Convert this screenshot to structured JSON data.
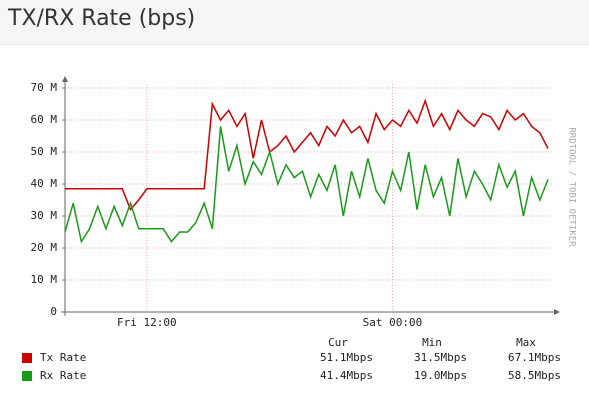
{
  "header": {
    "title": "TX/RX Rate (bps)"
  },
  "chart_data": {
    "type": "line",
    "watermark": "RRDTOOL / TOBI OETIKER",
    "categories": [
      null,
      null,
      null,
      null,
      null,
      null,
      null,
      null,
      null,
      null,
      "Fri 12:00",
      null,
      null,
      null,
      null,
      null,
      null,
      null,
      null,
      null,
      null,
      null,
      null,
      null,
      null,
      null,
      null,
      null,
      null,
      null,
      null,
      null,
      null,
      null,
      null,
      null,
      null,
      null,
      null,
      null,
      "Sat 00:00",
      null,
      null,
      null,
      null,
      null,
      null,
      null,
      null,
      null,
      null,
      null,
      null,
      null,
      null,
      null,
      null,
      null,
      null,
      null
    ],
    "series": [
      {
        "name": "Tx Rate",
        "color": "#cc0000",
        "values": [
          38500000,
          38500000,
          38500000,
          38500000,
          38500000,
          38500000,
          38500000,
          38500000,
          32000000,
          35000000,
          38500000,
          38500000,
          38500000,
          38500000,
          38500000,
          38500000,
          38500000,
          38500000,
          65000000,
          60000000,
          63000000,
          58000000,
          62000000,
          48000000,
          60000000,
          50000000,
          52000000,
          55000000,
          50000000,
          53000000,
          56000000,
          52000000,
          58000000,
          55000000,
          60000000,
          56000000,
          58000000,
          53000000,
          62000000,
          57000000,
          60000000,
          58000000,
          63000000,
          59000000,
          66000000,
          58000000,
          62000000,
          57000000,
          63000000,
          60000000,
          58000000,
          62000000,
          61000000,
          57000000,
          63000000,
          60000000,
          62000000,
          58000000,
          56000000,
          51100000
        ]
      },
      {
        "name": "Rx Rate",
        "color": "#1a9a1a",
        "values": [
          25000000,
          34000000,
          22000000,
          26000000,
          33000000,
          26000000,
          33000000,
          27000000,
          34000000,
          26000000,
          26000000,
          26000000,
          26000000,
          22000000,
          25000000,
          25000000,
          28000000,
          34000000,
          26000000,
          58000000,
          44000000,
          52000000,
          40000000,
          47000000,
          43000000,
          50000000,
          40000000,
          46000000,
          42000000,
          44000000,
          36000000,
          43000000,
          38000000,
          46000000,
          30000000,
          44000000,
          36000000,
          48000000,
          38000000,
          34000000,
          44000000,
          38000000,
          50000000,
          32000000,
          46000000,
          36000000,
          42000000,
          30000000,
          48000000,
          36000000,
          44000000,
          40000000,
          35000000,
          46000000,
          39000000,
          44000000,
          30000000,
          42000000,
          35000000,
          41400000
        ]
      }
    ],
    "ylim": [
      0,
      70000000
    ],
    "yticks": [
      0,
      {
        "value": 10000000,
        "label": "10 M"
      },
      {
        "value": 20000000,
        "label": "20 M"
      },
      {
        "value": 30000000,
        "label": "30 M"
      },
      {
        "value": 40000000,
        "label": "40 M"
      },
      {
        "value": 50000000,
        "label": "50 M"
      },
      {
        "value": 60000000,
        "label": "60 M"
      },
      {
        "value": 70000000,
        "label": "70 M"
      }
    ],
    "grid": true,
    "stats": {
      "columns": [
        "Cur",
        "Min",
        "Max"
      ],
      "rows": [
        [
          "51.1Mbps",
          "31.5Mbps",
          "67.1Mbps"
        ],
        [
          "41.4Mbps",
          "19.0Mbps",
          "58.5Mbps"
        ]
      ]
    }
  }
}
